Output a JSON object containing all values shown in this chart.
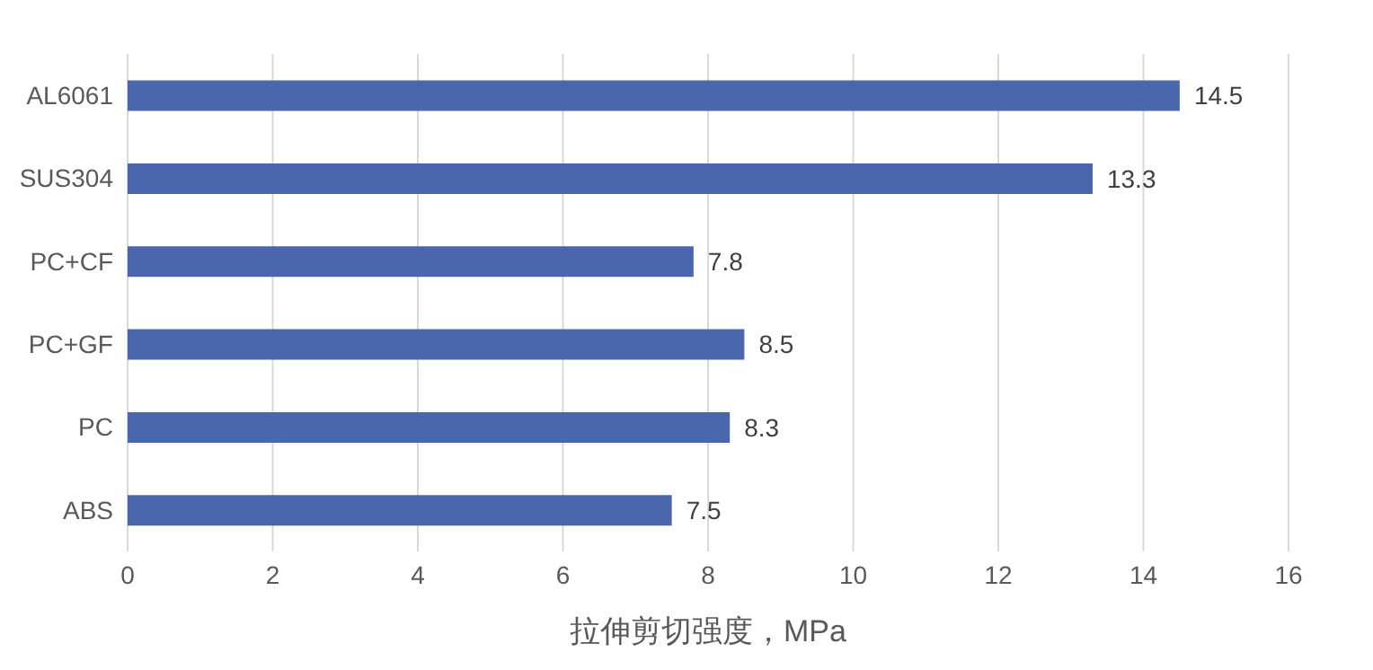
{
  "chart_data": {
    "type": "bar",
    "orientation": "horizontal",
    "xlabel": "拉伸剪切强度，MPa",
    "categories": [
      "AL6061",
      "SUS304",
      "PC+CF",
      "PC+GF",
      "PC",
      "ABS"
    ],
    "values": [
      14.5,
      13.3,
      7.8,
      8.5,
      8.3,
      7.5
    ],
    "color": "#4a66ac",
    "xlim": [
      0,
      16
    ],
    "xticks": [
      0,
      2,
      4,
      6,
      8,
      10,
      12,
      14,
      16
    ],
    "grid": "x",
    "data_labels": true
  }
}
